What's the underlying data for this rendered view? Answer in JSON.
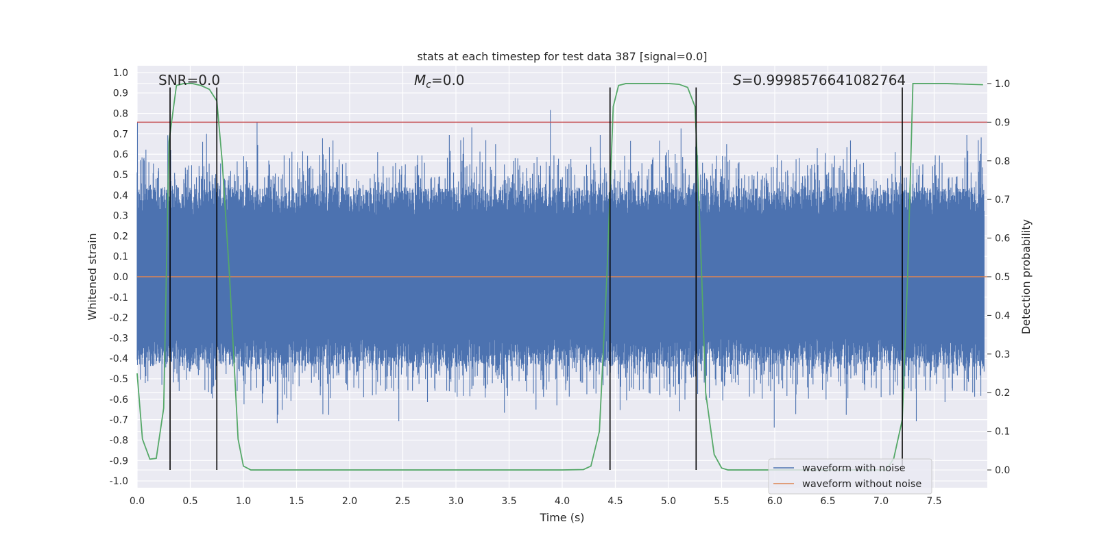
{
  "chart_data": {
    "type": "line",
    "title": "stats at each timestep for test data 387 [signal=0.0]",
    "xlabel": "Time (s)",
    "ylabel_left": "Whitened strain",
    "ylabel_right": "Detection probability",
    "xlim": [
      0.0,
      8.0
    ],
    "ylim_left": [
      -1.0333,
      1.0333
    ],
    "ylim_right": [
      -0.046,
      1.046
    ],
    "xticks": [
      "0.0",
      "0.5",
      "1.0",
      "1.5",
      "2.0",
      "2.5",
      "3.0",
      "3.5",
      "4.0",
      "4.5",
      "5.0",
      "5.5",
      "6.0",
      "6.5",
      "7.0",
      "7.5"
    ],
    "yticks_left": [
      "-1.0",
      "-0.9",
      "-0.8",
      "-0.7",
      "-0.6",
      "-0.5",
      "-0.4",
      "-0.3",
      "-0.2",
      "-0.1",
      "0.0",
      "0.1",
      "0.2",
      "0.3",
      "0.4",
      "0.5",
      "0.6",
      "0.7",
      "0.8",
      "0.9",
      "1.0"
    ],
    "yticks_right": [
      "0.0",
      "0.1",
      "0.2",
      "0.3",
      "0.4",
      "0.5",
      "0.6",
      "0.7",
      "0.8",
      "0.9",
      "1.0"
    ],
    "annotations": {
      "snr": "SNR=0.0",
      "mc_symbol": "M",
      "mc_sub": "c",
      "mc_value": "=0.0",
      "s_symbol": "S",
      "s_value": "=0.9998576641082764"
    },
    "grid": true,
    "legend_position": "lower-right",
    "series": [
      {
        "name": "waveform with noise",
        "color": "#4c72b0",
        "description_values": "dense noise, typical band -0.42 to 0.42, extremes about -1.0 to 0.97"
      },
      {
        "name": "waveform without noise",
        "color": "#dd8452",
        "values_constant": 0.0
      },
      {
        "color": "#55a868",
        "axis": "right",
        "x": [
          0.0,
          0.05,
          0.12,
          0.18,
          0.25,
          0.3,
          0.37,
          0.44,
          0.52,
          0.6,
          0.68,
          0.75,
          0.8,
          0.87,
          0.95,
          1.0,
          1.07,
          1.5,
          2.0,
          3.0,
          4.0,
          4.2,
          4.27,
          4.35,
          4.42,
          4.48,
          4.53,
          4.6,
          4.68,
          5.0,
          5.1,
          5.18,
          5.25,
          5.3,
          5.35,
          5.43,
          5.5,
          5.56,
          6.0,
          6.5,
          6.9,
          7.05,
          7.12,
          7.2,
          7.25,
          7.3,
          7.6,
          7.96
        ],
        "values": [
          0.25,
          0.08,
          0.028,
          0.03,
          0.16,
          0.85,
          0.995,
          1.0,
          1.0,
          0.995,
          0.985,
          0.955,
          0.8,
          0.5,
          0.08,
          0.01,
          0.0,
          0.0,
          0.0,
          0.0,
          0.0,
          0.001,
          0.01,
          0.1,
          0.5,
          0.94,
          0.995,
          1.0,
          1.0,
          1.0,
          0.998,
          0.99,
          0.94,
          0.6,
          0.2,
          0.04,
          0.005,
          0.0,
          0.0,
          0.0,
          0.0,
          0.0,
          0.03,
          0.13,
          0.5,
          1.0,
          1.0,
          0.997
        ]
      }
    ],
    "hlines": [
      {
        "axis": "right",
        "y": 0.9,
        "color": "#c44e52"
      }
    ],
    "vlines": {
      "color": "#000000",
      "x": [
        0.31,
        0.75,
        4.45,
        5.26,
        7.2
      ],
      "y_range_right": [
        0.0,
        0.99
      ]
    }
  }
}
